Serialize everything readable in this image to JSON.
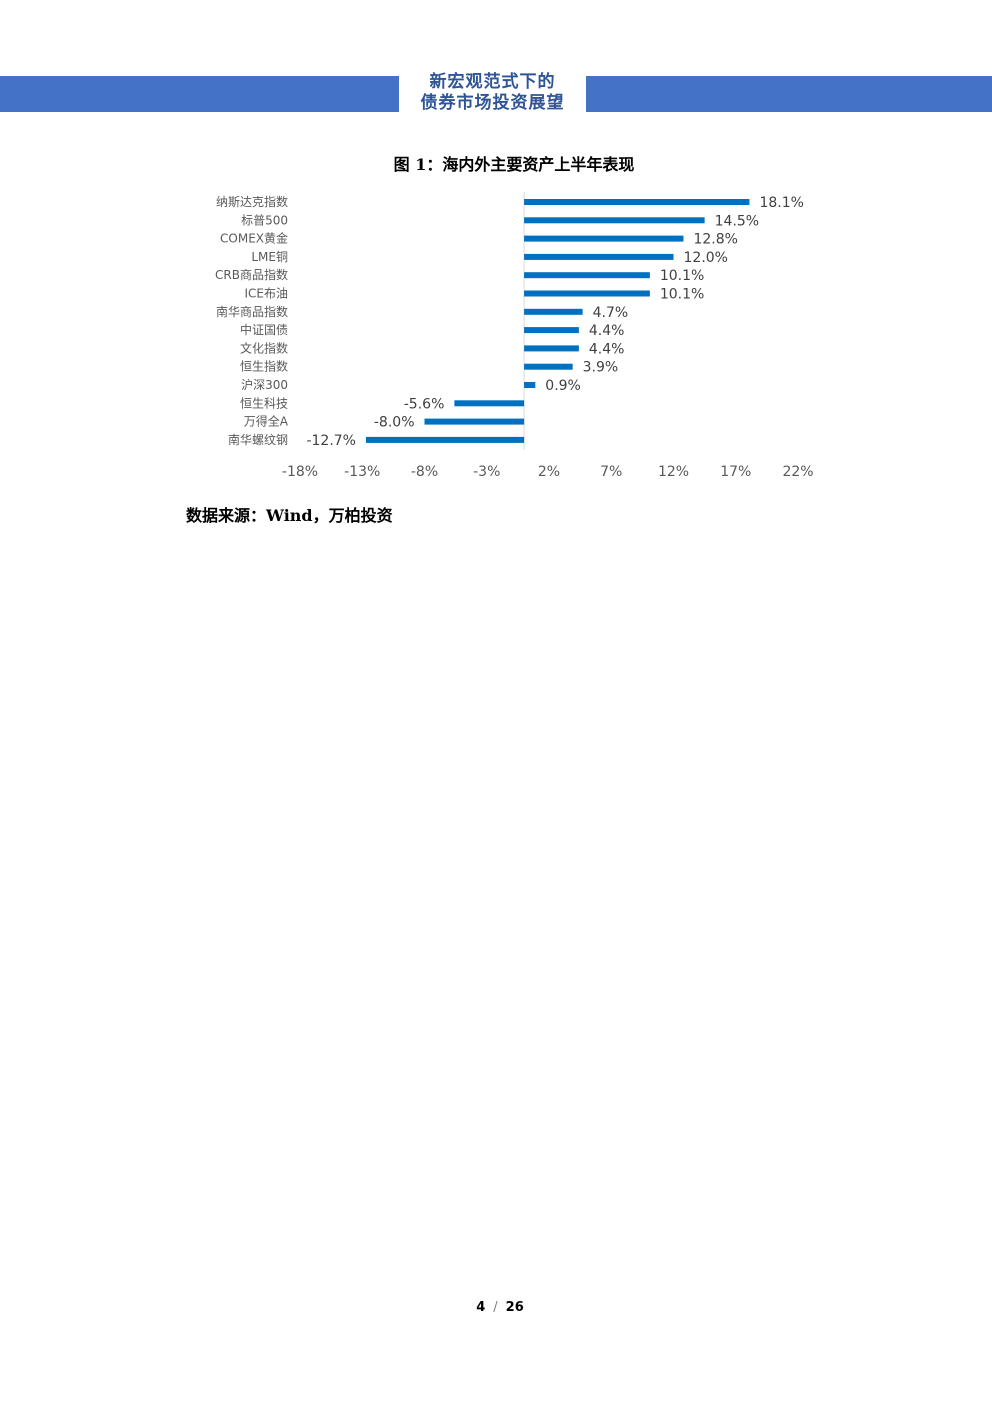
{
  "header": {
    "title_line1": "新宏观范式下的",
    "title_line2": "债券市场投资展望",
    "bar_color": "#4472c4",
    "title_color": "#2f5597"
  },
  "figure": {
    "caption": "图 1：海内外主要资产上半年表现"
  },
  "chart_data": {
    "type": "bar",
    "orientation": "horizontal",
    "categories": [
      "纳斯达克指数",
      "标普500",
      "COMEX黄金",
      "LME铜",
      "CRB商品指数",
      "ICE布油",
      "南华商品指数",
      "中证国债",
      "文化指数",
      "恒生指数",
      "沪深300",
      "恒生科技",
      "万得全A",
      "南华螺纹钢"
    ],
    "values": [
      18.1,
      14.5,
      12.8,
      12.0,
      10.1,
      10.1,
      4.7,
      4.4,
      4.4,
      3.9,
      0.9,
      -5.6,
      -8.0,
      -12.7
    ],
    "value_labels": [
      "18.1%",
      "14.5%",
      "12.8%",
      "12.0%",
      "10.1%",
      "10.1%",
      "4.7%",
      "4.4%",
      "4.4%",
      "3.9%",
      "0.9%",
      "-5.6%",
      "-8.0%",
      "-12.7%"
    ],
    "x_ticks": [
      -18,
      -13,
      -8,
      -3,
      2,
      7,
      12,
      17,
      22
    ],
    "x_tick_labels": [
      "-18%",
      "-13%",
      "-8%",
      "-3%",
      "2%",
      "7%",
      "12%",
      "17%",
      "22%"
    ],
    "xlim": [
      -18,
      22
    ],
    "bar_color": "#0070c0",
    "grid": false,
    "legend": "none"
  },
  "source": {
    "text": "数据来源：Wind，万柏投资"
  },
  "page": {
    "current": "4",
    "separator": "/",
    "total": "26"
  }
}
